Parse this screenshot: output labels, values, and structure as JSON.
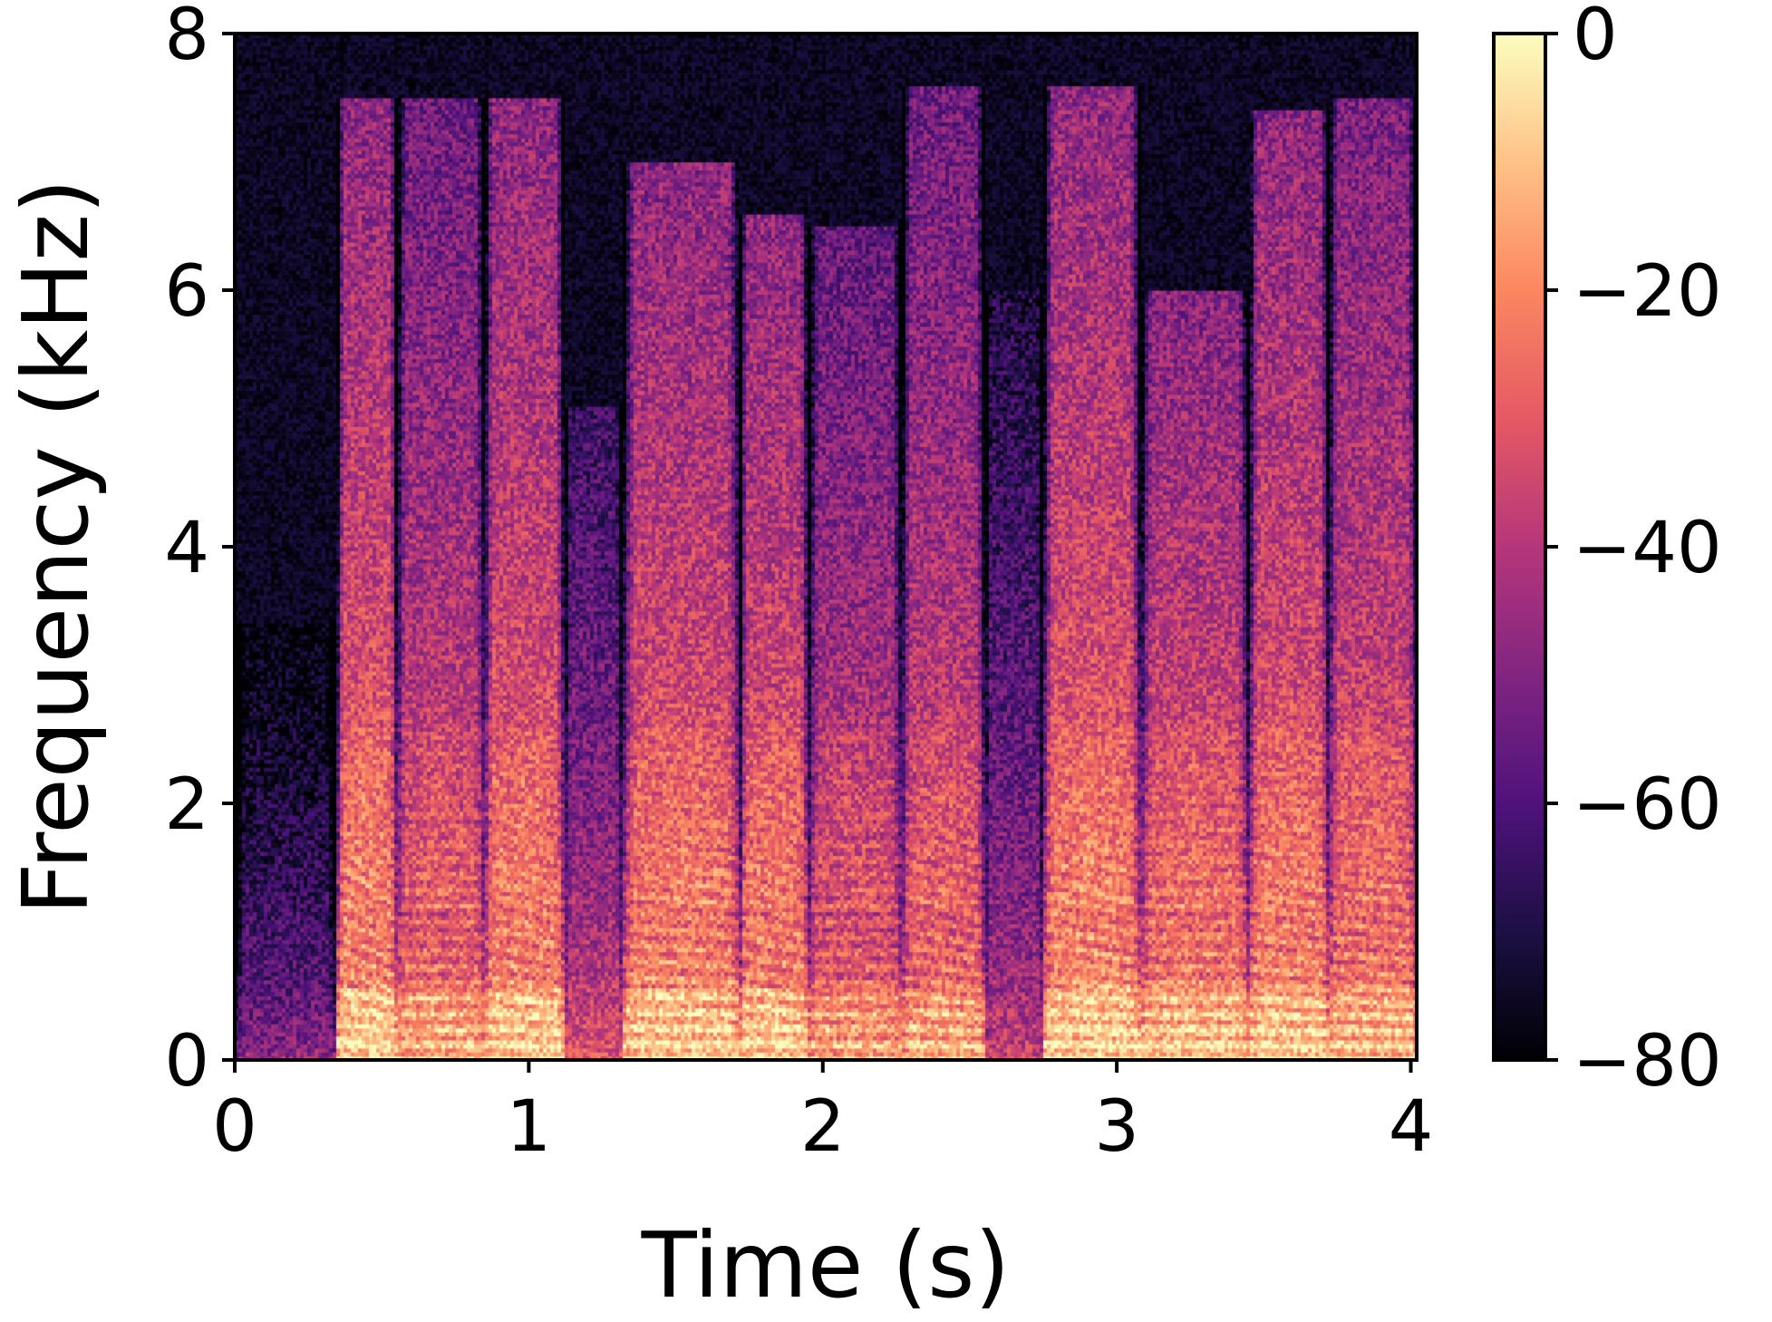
{
  "chart_data": {
    "type": "heatmap",
    "title": "",
    "xlabel": "Time (s)",
    "ylabel": "Frequency (kHz)",
    "xlim": [
      0,
      4.02
    ],
    "ylim": [
      0,
      8
    ],
    "xticks": [
      0,
      1,
      2,
      3,
      4
    ],
    "yticks": [
      0,
      2,
      4,
      6,
      8
    ],
    "colorbar": {
      "label": "",
      "range": [
        -80,
        0
      ],
      "ticks": [
        0,
        -20,
        -40,
        -60,
        -80
      ],
      "tick_labels": [
        "0",
        "−20",
        "−40",
        "−60",
        "−80"
      ],
      "colormap": "magma"
    },
    "colormap_stops": [
      "#000004",
      "#1c1044",
      "#4f127b",
      "#812581",
      "#b5367a",
      "#e55964",
      "#fb8761",
      "#fec287",
      "#fcfdbf"
    ],
    "grid": false,
    "cell_value_unit": "dB",
    "harmonic_spacing_khz": 0.12,
    "noise_floor_db": -80,
    "segments": [
      {
        "t0": 0.0,
        "t1": 0.35,
        "f_top": 3.4,
        "peak_db": -38
      },
      {
        "t0": 0.35,
        "t1": 0.55,
        "f_top": 7.5,
        "peak_db": -5,
        "f0_start": 0.14,
        "f0_end": 0.11
      },
      {
        "t0": 0.55,
        "t1": 0.85,
        "f_top": 7.5,
        "peak_db": -12,
        "f0_start": 0.12,
        "f0_end": 0.12
      },
      {
        "t0": 0.85,
        "t1": 1.12,
        "f_top": 7.5,
        "peak_db": -6,
        "f0_start": 0.13,
        "f0_end": 0.11
      },
      {
        "t0": 1.12,
        "t1": 1.32,
        "f_top": 5.1,
        "peak_db": -22
      },
      {
        "t0": 1.32,
        "t1": 1.72,
        "f_top": 7.0,
        "peak_db": -6,
        "f0_start": 0.13,
        "f0_end": 0.12
      },
      {
        "t0": 1.72,
        "t1": 1.95,
        "f_top": 6.6,
        "peak_db": -6,
        "f0_start": 0.14,
        "f0_end": 0.12
      },
      {
        "t0": 1.95,
        "t1": 2.27,
        "f_top": 6.5,
        "peak_db": -14,
        "f0_start": 0.12,
        "f0_end": 0.12
      },
      {
        "t0": 2.27,
        "t1": 2.55,
        "f_top": 7.6,
        "peak_db": -12,
        "f0_start": 0.13,
        "f0_end": 0.11
      },
      {
        "t0": 2.55,
        "t1": 2.75,
        "f_top": 6.0,
        "peak_db": -28
      },
      {
        "t0": 2.75,
        "t1": 3.08,
        "f_top": 7.6,
        "peak_db": -5,
        "f0_start": 0.13,
        "f0_end": 0.11
      },
      {
        "t0": 3.08,
        "t1": 3.45,
        "f_top": 6.0,
        "peak_db": -7,
        "f0_start": 0.12,
        "f0_end": 0.12
      },
      {
        "t0": 3.45,
        "t1": 3.72,
        "f_top": 7.4,
        "peak_db": -6,
        "f0_start": 0.12,
        "f0_end": 0.11
      },
      {
        "t0": 3.72,
        "t1": 4.02,
        "f_top": 7.5,
        "peak_db": -9,
        "f0_start": 0.12,
        "f0_end": 0.11
      }
    ]
  }
}
